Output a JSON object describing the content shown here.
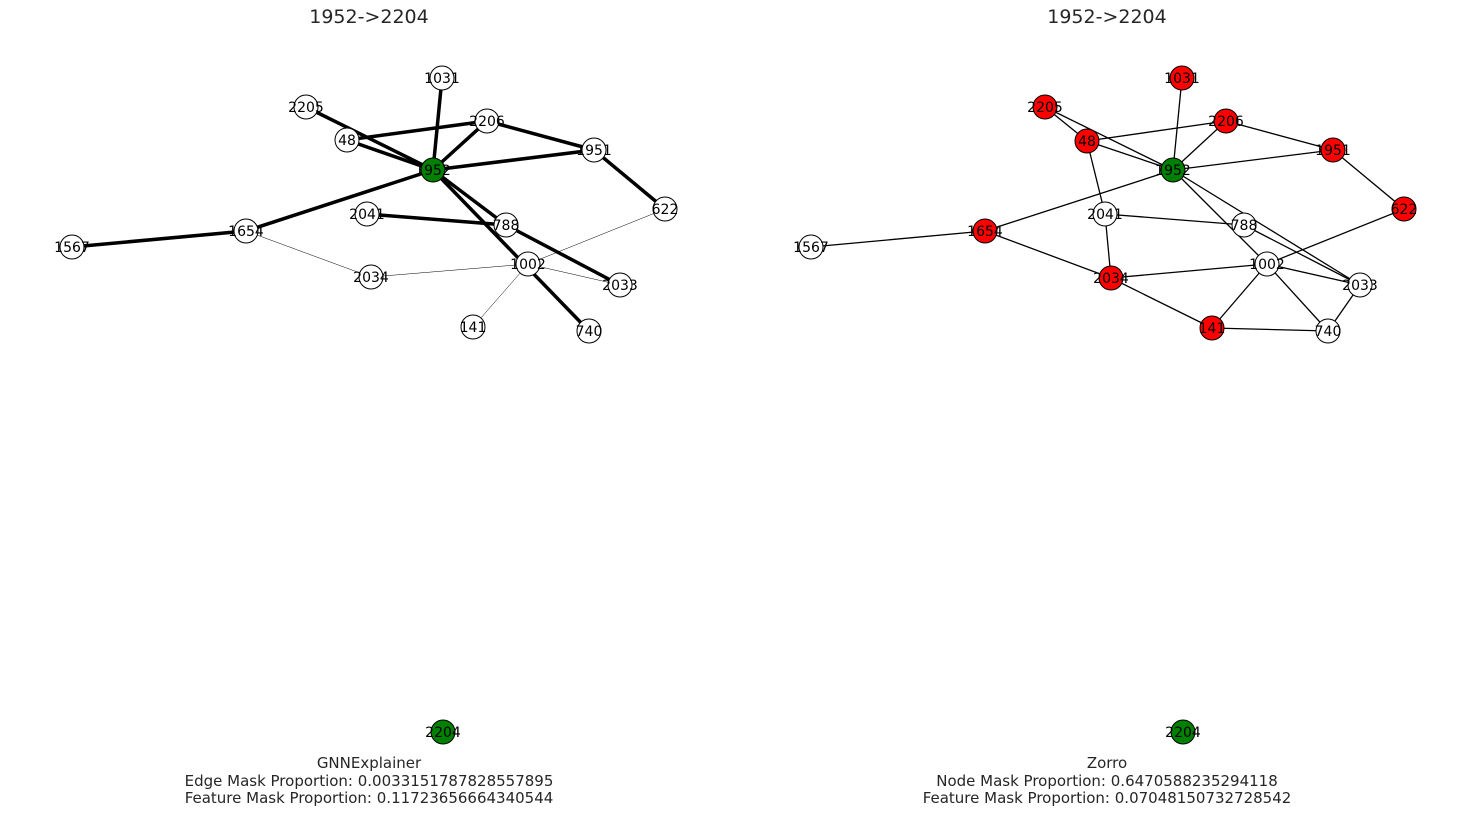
{
  "colors": {
    "highlight_node": "#008000",
    "masked_node": "#ff0000",
    "plain_node": "#ffffff",
    "edge": "#000000",
    "outline": "#000000"
  },
  "panels": [
    {
      "title": "1952->2204",
      "caption": [
        "GNNExplainer",
        "Edge Mask Proportion: 0.0033151787828557895",
        "Feature Mask Proportion: 0.11723656664340544"
      ],
      "nodes": [
        {
          "id": "1031",
          "fill": "white"
        },
        {
          "id": "2205",
          "fill": "white"
        },
        {
          "id": "2206",
          "fill": "white"
        },
        {
          "id": "48",
          "fill": "white"
        },
        {
          "id": "1951",
          "fill": "white"
        },
        {
          "id": "1952",
          "fill": "green"
        },
        {
          "id": "622",
          "fill": "white"
        },
        {
          "id": "2041",
          "fill": "white"
        },
        {
          "id": "788",
          "fill": "white"
        },
        {
          "id": "1654",
          "fill": "white"
        },
        {
          "id": "1567",
          "fill": "white"
        },
        {
          "id": "1002",
          "fill": "white"
        },
        {
          "id": "2034",
          "fill": "white"
        },
        {
          "id": "2033",
          "fill": "white"
        },
        {
          "id": "141",
          "fill": "white"
        },
        {
          "id": "740",
          "fill": "white"
        },
        {
          "id": "2204",
          "fill": "green"
        }
      ],
      "edges": [
        [
          "1952",
          "1031",
          "thick"
        ],
        [
          "1952",
          "2205",
          "thick"
        ],
        [
          "1952",
          "2206",
          "thick"
        ],
        [
          "1952",
          "48",
          "thick"
        ],
        [
          "1952",
          "1951",
          "thick"
        ],
        [
          "1952",
          "1654",
          "thick"
        ],
        [
          "1952",
          "788",
          "thick"
        ],
        [
          "1952",
          "740",
          "thick"
        ],
        [
          "1654",
          "1567",
          "thick"
        ],
        [
          "48",
          "2206",
          "thick"
        ],
        [
          "2206",
          "1951",
          "thick"
        ],
        [
          "1951",
          "622",
          "thick"
        ],
        [
          "2041",
          "788",
          "thick"
        ],
        [
          "788",
          "2033",
          "thick"
        ],
        [
          "1654",
          "2034",
          "thin"
        ],
        [
          "2034",
          "1002",
          "thin"
        ],
        [
          "1002",
          "622",
          "thin"
        ],
        [
          "1002",
          "2033",
          "thin"
        ],
        [
          "1002",
          "141",
          "thin"
        ]
      ]
    },
    {
      "title": "1952->2204",
      "caption": [
        "Zorro",
        "Node Mask Proportion: 0.6470588235294118",
        "Feature Mask Proportion: 0.07048150732728542"
      ],
      "nodes": [
        {
          "id": "1031",
          "fill": "red"
        },
        {
          "id": "2205",
          "fill": "red"
        },
        {
          "id": "2206",
          "fill": "red"
        },
        {
          "id": "48",
          "fill": "red"
        },
        {
          "id": "1951",
          "fill": "red"
        },
        {
          "id": "1952",
          "fill": "green"
        },
        {
          "id": "622",
          "fill": "red"
        },
        {
          "id": "2041",
          "fill": "white"
        },
        {
          "id": "788",
          "fill": "white"
        },
        {
          "id": "1654",
          "fill": "red"
        },
        {
          "id": "1567",
          "fill": "white"
        },
        {
          "id": "1002",
          "fill": "white"
        },
        {
          "id": "2034",
          "fill": "red"
        },
        {
          "id": "2033",
          "fill": "white"
        },
        {
          "id": "141",
          "fill": "red"
        },
        {
          "id": "740",
          "fill": "white"
        },
        {
          "id": "2204",
          "fill": "green"
        }
      ],
      "edges": [
        [
          "1952",
          "1031"
        ],
        [
          "1952",
          "2205"
        ],
        [
          "1952",
          "2206"
        ],
        [
          "1952",
          "48"
        ],
        [
          "1952",
          "1951"
        ],
        [
          "1952",
          "1654"
        ],
        [
          "1952",
          "1002"
        ],
        [
          "1952",
          "2033"
        ],
        [
          "2205",
          "48"
        ],
        [
          "48",
          "2206"
        ],
        [
          "48",
          "2041"
        ],
        [
          "2206",
          "1951"
        ],
        [
          "1951",
          "622"
        ],
        [
          "622",
          "1002"
        ],
        [
          "2041",
          "788"
        ],
        [
          "2041",
          "2034"
        ],
        [
          "1654",
          "1567"
        ],
        [
          "1654",
          "2034"
        ],
        [
          "2034",
          "1002"
        ],
        [
          "2034",
          "141"
        ],
        [
          "1002",
          "2033"
        ],
        [
          "1002",
          "141"
        ],
        [
          "1002",
          "740"
        ],
        [
          "788",
          "2033"
        ],
        [
          "2033",
          "740"
        ],
        [
          "141",
          "740"
        ]
      ]
    }
  ]
}
